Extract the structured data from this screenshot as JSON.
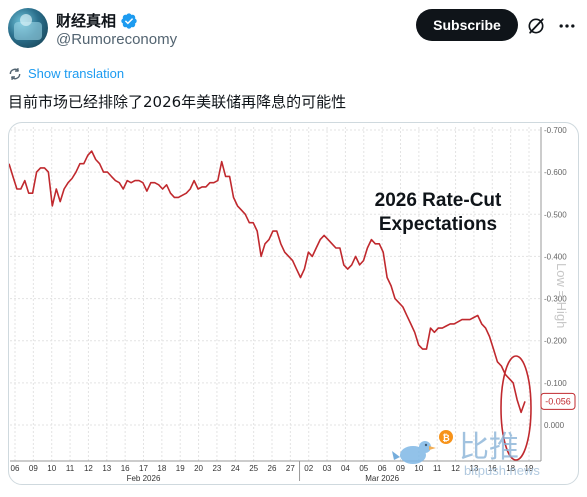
{
  "author": {
    "display_name": "财经真相",
    "handle": "@Rumoreconomy",
    "verified_icon": "verified-badge-icon",
    "avatar_icon": "avatar-icon"
  },
  "actions": {
    "subscribe_label": "Subscribe",
    "grok_icon": "grok-icon",
    "more_icon": "more-icon"
  },
  "translation": {
    "label": "Show translation",
    "icon": "translate-icon"
  },
  "post": {
    "text": "目前市场已经排除了2026年美联储再降息的可能性"
  },
  "colors": {
    "accent": "#1d9bf0",
    "line": "#c0292e",
    "subscribe_bg": "#0f1419"
  },
  "watermark": {
    "brand_cn": "比推",
    "brand_en": "bitpush.news"
  },
  "chart_data": {
    "type": "line",
    "annotation": "2026 Rate-Cut Expectations",
    "side_label": "Low = High",
    "last_value_label": "-0.056",
    "y_tick_labels": [
      "-0.700",
      "-0.600",
      "-0.500",
      "-0.400",
      "-0.300",
      "-0.200",
      "-0.100",
      "0.000"
    ],
    "ylim": [
      -0.7,
      0.0
    ],
    "x_tick_labels": [
      "06",
      "09",
      "10",
      "11",
      "12",
      "13",
      "16",
      "17",
      "18",
      "19",
      "20",
      "23",
      "24",
      "25",
      "26",
      "27",
      "02",
      "03",
      "04",
      "05",
      "06",
      "09",
      "10",
      "11",
      "12",
      "13",
      "16",
      "18",
      "19"
    ],
    "month_labels": [
      {
        "label": "Feb 2026",
        "tick_index": 7
      },
      {
        "label": "Mar 2026",
        "tick_index": 20
      }
    ],
    "series": [
      {
        "values": [
          -0.62,
          -0.59,
          -0.56,
          -0.56,
          -0.58,
          -0.55,
          -0.55,
          -0.6,
          -0.61,
          -0.61,
          -0.6,
          -0.52,
          -0.56,
          -0.53,
          -0.56,
          -0.575,
          -0.585,
          -0.6,
          -0.62,
          -0.62,
          -0.64,
          -0.65,
          -0.63,
          -0.62,
          -0.6,
          -0.6,
          -0.59,
          -0.58,
          -0.575,
          -0.56,
          -0.58,
          -0.575,
          -0.58,
          -0.58,
          -0.575,
          -0.555,
          -0.575,
          -0.575,
          -0.57,
          -0.56,
          -0.57,
          -0.55,
          -0.54,
          -0.54,
          -0.545,
          -0.55,
          -0.56,
          -0.58,
          -0.56,
          -0.565,
          -0.565,
          -0.575,
          -0.575,
          -0.58,
          -0.625,
          -0.59,
          -0.59,
          -0.54,
          -0.52,
          -0.51,
          -0.5,
          -0.48,
          -0.48,
          -0.46,
          -0.4,
          -0.43,
          -0.44,
          -0.46,
          -0.46,
          -0.43,
          -0.41,
          -0.4,
          -0.39,
          -0.37,
          -0.35,
          -0.37,
          -0.41,
          -0.4,
          -0.42,
          -0.44,
          -0.45,
          -0.44,
          -0.43,
          -0.42,
          -0.42,
          -0.38,
          -0.37,
          -0.38,
          -0.4,
          -0.38,
          -0.39,
          -0.42,
          -0.44,
          -0.43,
          -0.43,
          -0.41,
          -0.35,
          -0.33,
          -0.3,
          -0.29,
          -0.28,
          -0.26,
          -0.24,
          -0.22,
          -0.19,
          -0.18,
          -0.18,
          -0.23,
          -0.22,
          -0.23,
          -0.23,
          -0.235,
          -0.24,
          -0.24,
          -0.245,
          -0.25,
          -0.25,
          -0.25,
          -0.255,
          -0.26,
          -0.24,
          -0.23,
          -0.21,
          -0.18,
          -0.15,
          -0.14,
          -0.12,
          -0.11,
          -0.1,
          -0.06,
          -0.03,
          -0.056
        ]
      }
    ],
    "grid": true
  }
}
